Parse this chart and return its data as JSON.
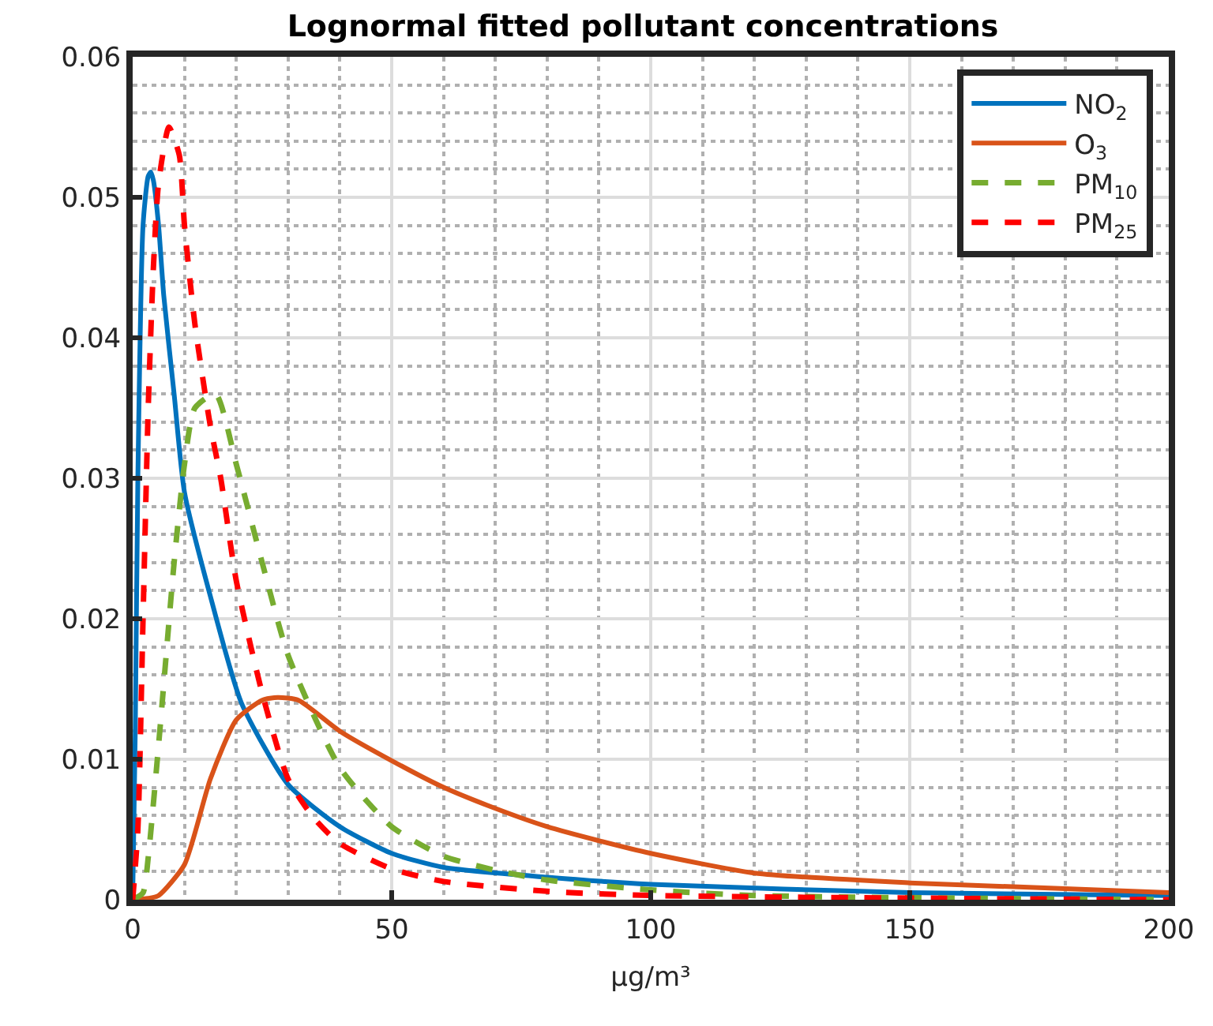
{
  "chart_data": {
    "type": "line",
    "title": "Lognormal fitted pollutant concentrations",
    "xlabel": "μg/m³",
    "xlim": [
      0,
      200
    ],
    "xticks": [
      0,
      50,
      100,
      150,
      200
    ],
    "ylim": [
      0,
      0.06
    ],
    "yticks": [
      0,
      0.01,
      0.02,
      0.03,
      0.04,
      0.05,
      0.06
    ],
    "grid": true,
    "legend": "top right",
    "marker": "none",
    "series": [
      {
        "name": "NO$_{2}$",
        "color": "#0072bd",
        "line_style": "solid",
        "x": [
          0,
          0.5,
          1,
          2,
          3,
          3.5,
          4,
          5,
          6,
          8,
          10,
          15,
          21,
          30,
          40,
          50,
          60,
          80,
          100,
          150,
          200
        ],
        "values": [
          0,
          0.012,
          0.03,
          0.048,
          0.0515,
          0.0518,
          0.0512,
          0.048,
          0.043,
          0.036,
          0.029,
          0.0216,
          0.014,
          0.0082,
          0.0052,
          0.0033,
          0.0023,
          0.0016,
          0.0011,
          0.0005,
          0.0003
        ]
      },
      {
        "name": "O$_{3}$",
        "color": "#d95319",
        "line_style": "solid",
        "x": [
          0,
          3,
          5,
          10,
          15,
          20,
          25,
          28,
          32,
          40,
          50,
          60,
          70,
          80,
          90,
          100,
          120,
          150,
          200
        ],
        "values": [
          0,
          0.0001,
          0.0003,
          0.0025,
          0.0086,
          0.0128,
          0.0142,
          0.0144,
          0.0142,
          0.012,
          0.0099,
          0.008,
          0.0065,
          0.0052,
          0.0042,
          0.0033,
          0.0019,
          0.0012,
          0.0005
        ]
      },
      {
        "name": "PM$_{10}$",
        "color": "#77ac30",
        "line_style": "dashed",
        "x": [
          0,
          2,
          3,
          5,
          8,
          10,
          12,
          16,
          20,
          25,
          30,
          40,
          50,
          60,
          70,
          80,
          100,
          120,
          200
        ],
        "values": [
          0,
          0.0005,
          0.003,
          0.011,
          0.024,
          0.031,
          0.035,
          0.036,
          0.031,
          0.024,
          0.0174,
          0.0094,
          0.0052,
          0.0031,
          0.0021,
          0.0014,
          0.0007,
          0.0003,
          0
        ]
      },
      {
        "name": "PM$_{25}$",
        "color": "#ff0000",
        "line_style": "dashed",
        "x": [
          0,
          1,
          2,
          3,
          4,
          5,
          7,
          9,
          10,
          12,
          15,
          17,
          20,
          25,
          30,
          35,
          40,
          50,
          60,
          80,
          100,
          200
        ],
        "values": [
          0,
          0.005,
          0.02,
          0.035,
          0.045,
          0.051,
          0.055,
          0.053,
          0.048,
          0.041,
          0.0337,
          0.03,
          0.0227,
          0.0147,
          0.0086,
          0.0058,
          0.004,
          0.0022,
          0.0013,
          0.0006,
          0.0003,
          0
        ]
      }
    ]
  }
}
